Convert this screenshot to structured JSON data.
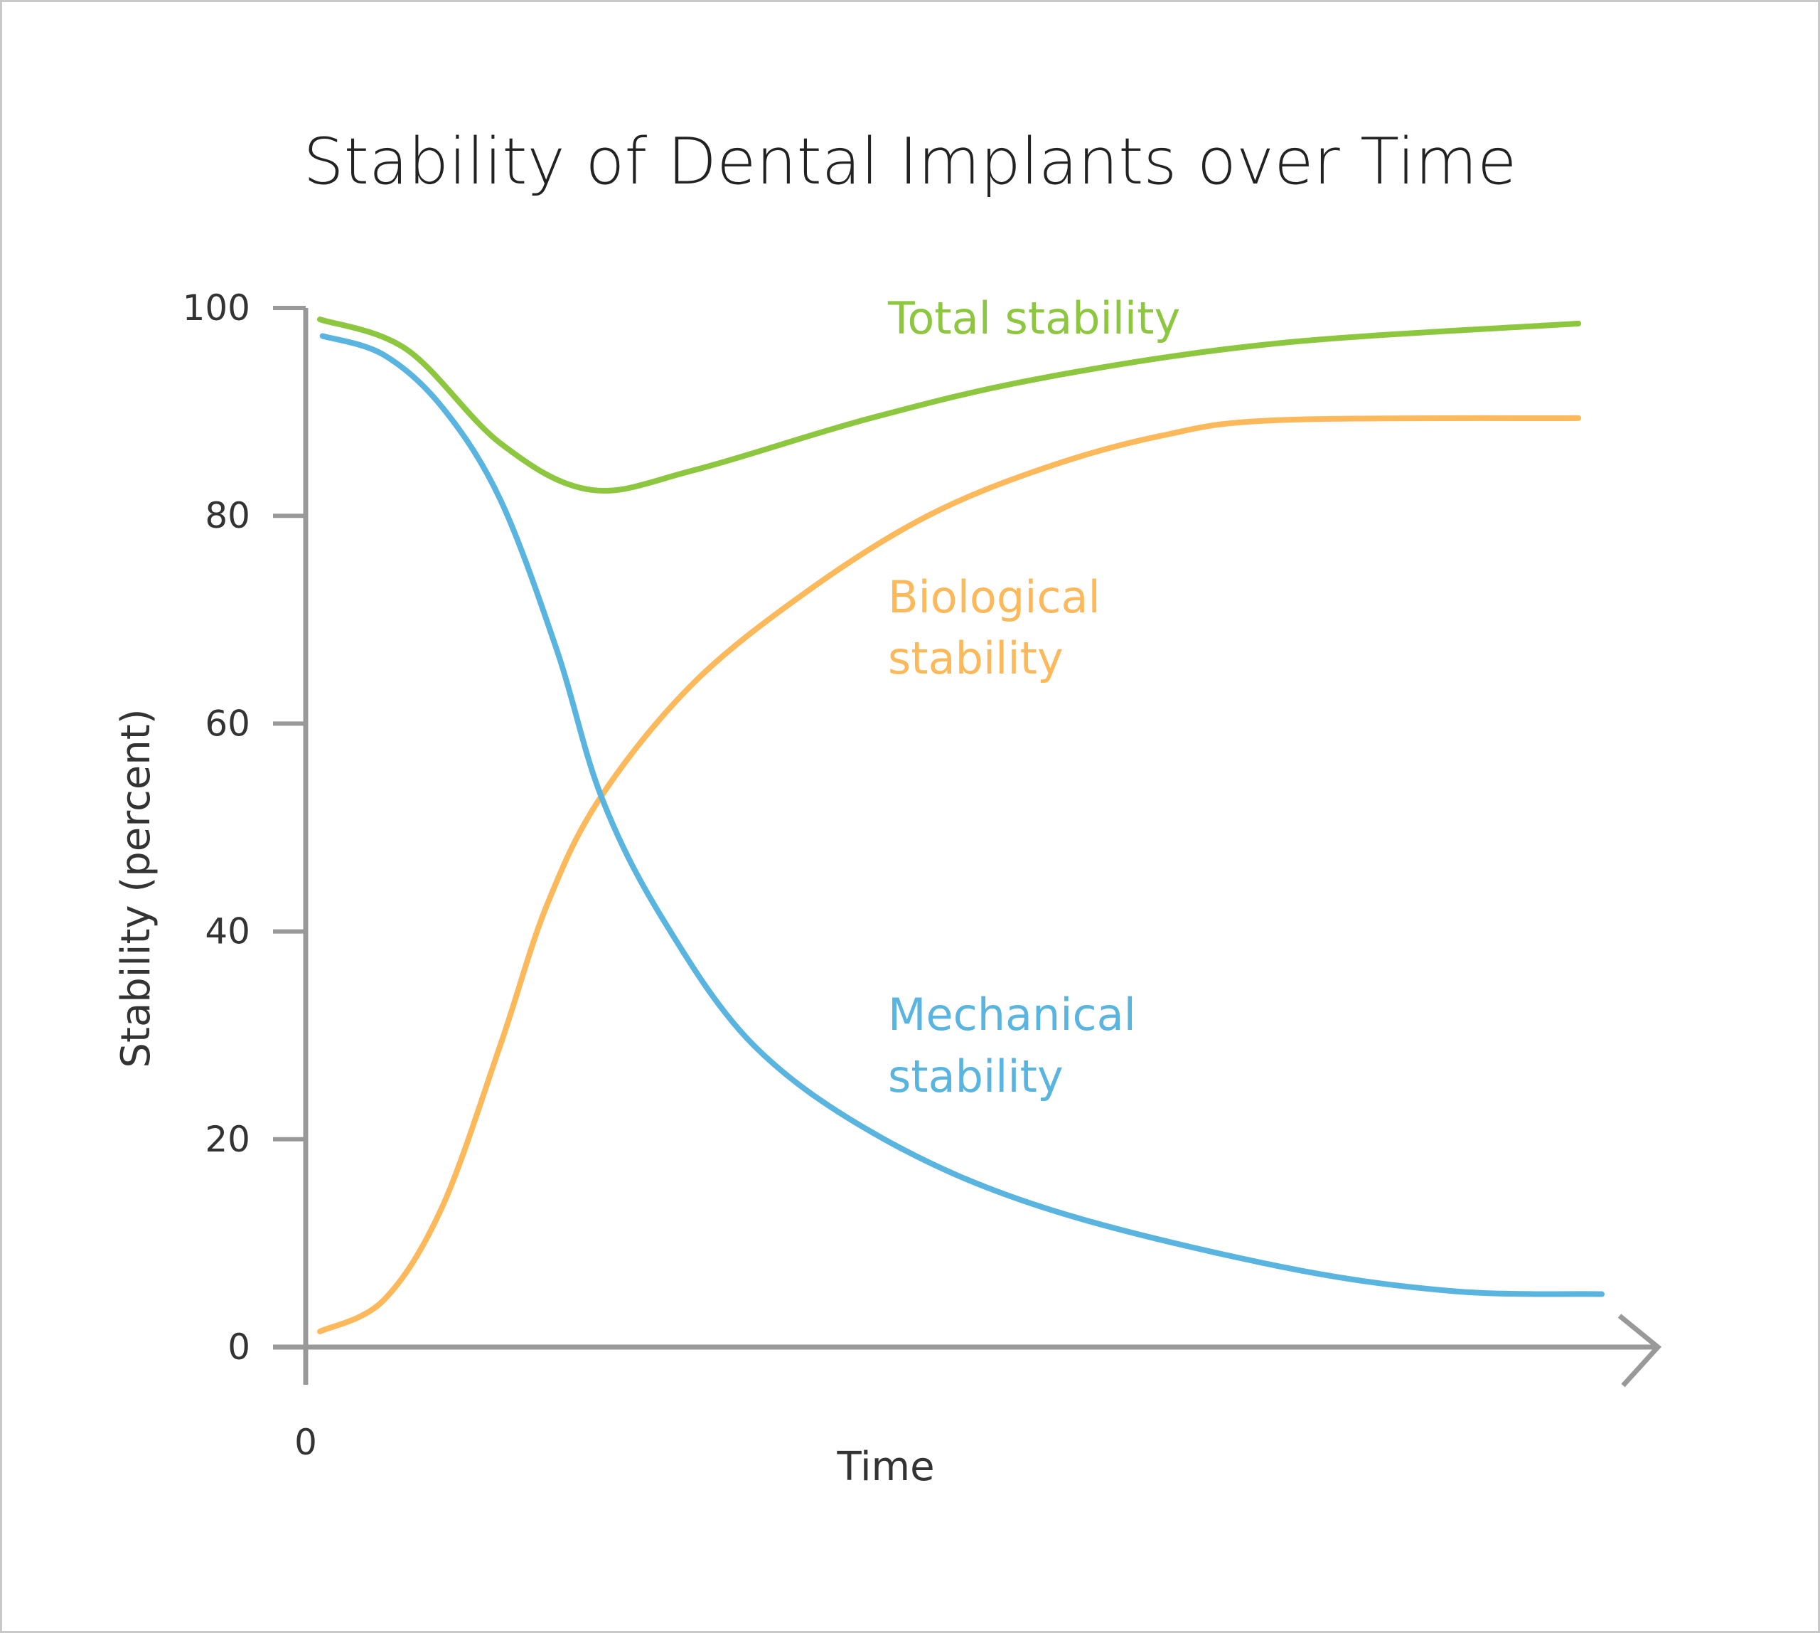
{
  "chart_data": {
    "type": "line",
    "title": "Stability of Dental Implants over Time",
    "xlabel": "Time",
    "ylabel": "Stability (percent)",
    "x_tick_labels": [
      "0"
    ],
    "y_ticks": [
      0,
      20,
      40,
      60,
      80,
      100
    ],
    "y_tick_labels": [
      "0",
      "20",
      "40",
      "60",
      "80",
      "100"
    ],
    "xlim": [
      0,
      100
    ],
    "ylim": [
      0,
      100
    ],
    "grid": false,
    "legend": "inline labels",
    "series": [
      {
        "name": "Total stability",
        "label_lines": [
          "Total stability"
        ],
        "color": "#8dc63f",
        "x": [
          1.1,
          7.8,
          15,
          22,
          30,
          43.6,
          57,
          75,
          98.2
        ],
        "y": [
          98.9,
          96,
          87,
          82.5,
          84.4,
          89.4,
          93.3,
          96.6,
          98.5
        ]
      },
      {
        "name": "Biological stability",
        "label_lines": [
          "Biological",
          "stability"
        ],
        "color": "#fbb95b",
        "x": [
          1.1,
          6,
          10.5,
          15,
          18.6,
          22.8,
          30,
          39,
          48,
          57,
          66,
          75,
          98.2
        ],
        "y": [
          1.5,
          4.5,
          13.4,
          29,
          42.5,
          53,
          64,
          73,
          80,
          84.6,
          87.7,
          89.2,
          89.4
        ]
      },
      {
        "name": "Mechanical stability",
        "label_lines": [
          "Mechanical",
          "stability"
        ],
        "color": "#5ab4e0",
        "x": [
          1.3,
          6,
          10.5,
          15,
          19.4,
          22.8,
          27.5,
          34.6,
          44.5,
          57,
          75,
          88.4,
          100
        ],
        "y": [
          97.3,
          95.5,
          90.5,
          81.6,
          67,
          53,
          41.3,
          29,
          20.1,
          13.4,
          7.8,
          5.4,
          5.1
        ]
      }
    ]
  }
}
